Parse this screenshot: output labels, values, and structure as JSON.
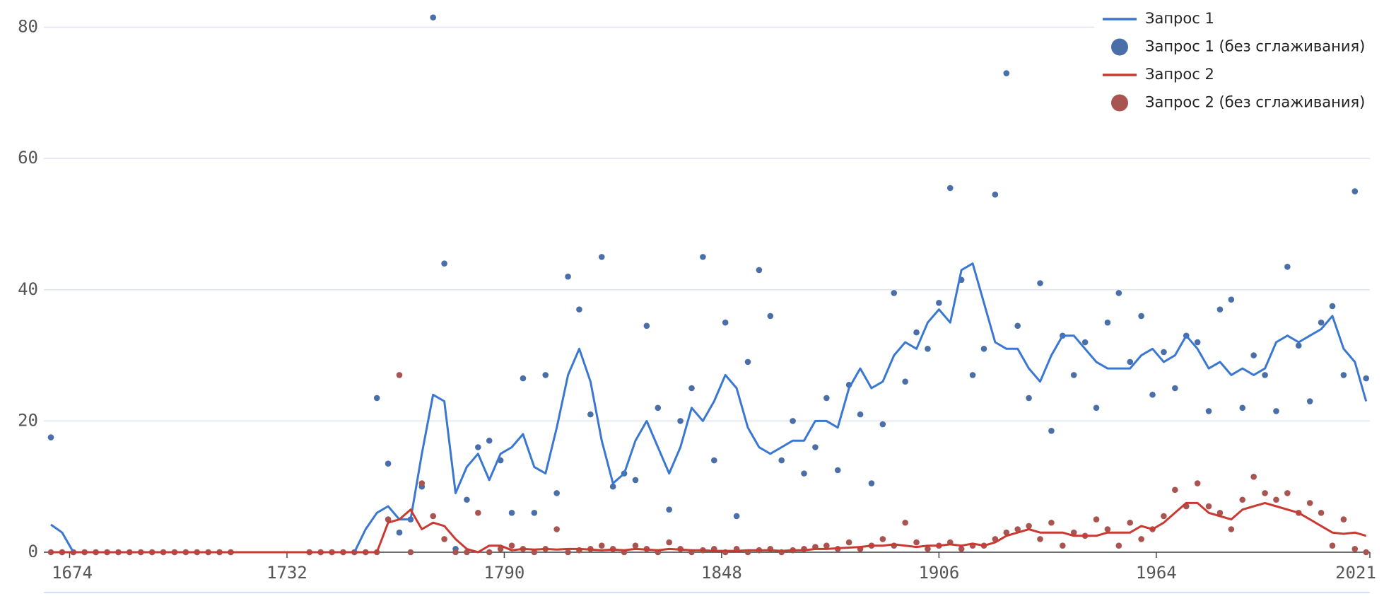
{
  "chart_data": {
    "type": "line",
    "x": [
      1669,
      1672,
      1675,
      1678,
      1681,
      1684,
      1687,
      1690,
      1693,
      1696,
      1699,
      1702,
      1705,
      1708,
      1711,
      1714,
      1717,
      1720,
      1723,
      1726,
      1729,
      1732,
      1735,
      1738,
      1741,
      1744,
      1747,
      1750,
      1753,
      1756,
      1759,
      1762,
      1765,
      1768,
      1771,
      1774,
      1777,
      1780,
      1783,
      1786,
      1789,
      1792,
      1795,
      1798,
      1801,
      1804,
      1807,
      1810,
      1813,
      1816,
      1819,
      1822,
      1825,
      1828,
      1831,
      1834,
      1837,
      1840,
      1843,
      1846,
      1849,
      1852,
      1855,
      1858,
      1861,
      1864,
      1867,
      1870,
      1873,
      1876,
      1879,
      1882,
      1885,
      1888,
      1891,
      1894,
      1897,
      1900,
      1903,
      1906,
      1909,
      1912,
      1915,
      1918,
      1921,
      1924,
      1927,
      1930,
      1933,
      1936,
      1939,
      1942,
      1945,
      1948,
      1951,
      1954,
      1957,
      1960,
      1963,
      1966,
      1969,
      1972,
      1975,
      1978,
      1981,
      1984,
      1987,
      1990,
      1993,
      1996,
      1999,
      2002,
      2005,
      2008,
      2011,
      2014,
      2017,
      2020
    ],
    "series": [
      {
        "name": "Запрос 1 (без сглаживания)",
        "mode": "markers",
        "color": "#4a6ea8",
        "values": [
          17.5,
          0,
          0,
          0,
          0,
          0,
          0,
          0,
          0,
          0,
          0,
          0,
          0,
          0,
          0,
          0,
          0,
          null,
          null,
          null,
          null,
          null,
          null,
          0,
          0,
          0,
          0,
          0,
          0,
          23.5,
          13.5,
          3,
          5,
          10,
          81.5,
          44,
          0.5,
          8,
          16,
          17,
          14,
          6,
          26.5,
          6,
          27,
          9,
          42,
          37,
          21,
          45,
          10,
          12,
          11,
          34.5,
          22,
          6.5,
          20,
          25,
          45,
          14,
          35,
          5.5,
          29,
          43,
          36,
          14,
          20,
          12,
          16,
          23.5,
          12.5,
          25.5,
          21,
          10.5,
          19.5,
          39.5,
          26,
          33.5,
          31,
          38,
          55.5,
          41.5,
          27,
          31,
          54.5,
          73,
          34.5,
          23.5,
          41,
          18.5,
          33,
          27,
          32,
          22,
          35,
          39.5,
          29,
          36,
          24,
          30.5,
          25,
          33,
          32,
          21.5,
          37,
          38.5,
          22,
          30,
          27,
          21.5,
          43.5,
          31.5,
          23,
          35,
          37.5,
          27,
          55,
          26.5
        ]
      },
      {
        "name": "Запрос 2 (без сглаживания)",
        "mode": "markers",
        "color": "#a85450",
        "values": [
          0,
          0,
          0,
          0,
          0,
          0,
          0,
          0,
          0,
          0,
          0,
          0,
          0,
          0,
          0,
          0,
          0,
          null,
          null,
          null,
          null,
          null,
          null,
          0,
          0,
          0,
          0,
          0,
          0,
          0,
          5,
          27,
          0,
          10.5,
          5.5,
          2,
          0,
          0,
          6,
          0,
          0.5,
          1,
          0.5,
          0,
          0.5,
          3.5,
          0,
          0.3,
          0.5,
          1,
          0.5,
          0,
          1,
          0.5,
          0,
          1.5,
          0.5,
          0,
          0.3,
          0.5,
          0,
          0.5,
          0,
          0.3,
          0.5,
          0,
          0.3,
          0.5,
          0.8,
          1,
          0.5,
          1.5,
          0.5,
          1,
          2,
          1,
          4.5,
          1.5,
          0.5,
          1,
          1.5,
          0.5,
          1,
          1,
          2,
          3,
          3.5,
          4,
          2,
          4.5,
          1,
          3,
          2.5,
          5,
          3.5,
          1,
          4.5,
          2,
          3.5,
          5.5,
          9.5,
          7,
          10.5,
          7,
          6,
          3.5,
          8,
          11.5,
          9,
          8,
          9,
          6,
          7.5,
          6,
          1,
          5,
          0.5,
          0
        ]
      },
      {
        "name": "Запрос 1",
        "mode": "line",
        "color": "#3a77d0",
        "values": [
          4.2,
          3,
          0,
          0,
          0,
          0,
          0,
          0,
          0,
          0,
          0,
          0,
          0,
          0,
          0,
          0,
          0,
          0,
          0,
          0,
          0,
          0,
          0,
          0,
          0,
          0,
          0,
          0,
          3.5,
          6,
          7,
          5,
          5,
          15,
          24,
          23,
          9,
          13,
          15,
          11,
          15,
          16,
          18,
          13,
          12,
          19,
          27,
          31,
          26,
          17,
          10.5,
          12,
          17,
          20,
          16,
          12,
          16,
          22,
          20,
          23,
          27,
          25,
          19,
          16,
          15,
          16,
          17,
          17,
          20,
          20,
          19,
          25,
          28,
          25,
          26,
          30,
          32,
          31,
          35,
          37,
          35,
          43,
          44,
          38,
          32,
          31,
          31,
          28,
          26,
          30,
          33,
          33,
          31,
          29,
          28,
          28,
          28,
          30,
          31,
          29,
          30,
          33,
          31,
          28,
          29,
          27,
          28,
          27,
          28,
          32,
          33,
          32,
          33,
          34,
          36,
          31,
          29,
          23
        ]
      },
      {
        "name": "Запрос 2",
        "mode": "line",
        "color": "#c83a32",
        "values": [
          0,
          0,
          0,
          0,
          0,
          0,
          0,
          0,
          0,
          0,
          0,
          0,
          0,
          0,
          0,
          0,
          0,
          0,
          0,
          0,
          0,
          0,
          0,
          0,
          0,
          0,
          0,
          0,
          0,
          0,
          4.5,
          5,
          6.5,
          3.5,
          4.5,
          4,
          2,
          0.5,
          0,
          1,
          1,
          0.3,
          0.5,
          0.4,
          0.5,
          0.4,
          0.5,
          0.5,
          0.4,
          0.3,
          0.4,
          0.3,
          0.5,
          0.4,
          0.3,
          0.5,
          0.4,
          0.3,
          0.3,
          0.2,
          0.2,
          0.2,
          0.3,
          0.3,
          0.3,
          0.2,
          0.3,
          0.3,
          0.5,
          0.5,
          0.6,
          0.7,
          0.8,
          1,
          1,
          1.2,
          1,
          0.8,
          1,
          1,
          1.2,
          1,
          1.3,
          1,
          1.5,
          2.5,
          3,
          3.5,
          3,
          3,
          3,
          2.5,
          2.5,
          2.5,
          3,
          3,
          3,
          4,
          3.5,
          4.5,
          6,
          7.5,
          7.5,
          6,
          5.5,
          5,
          6.5,
          7,
          7.5,
          7,
          6.5,
          6,
          5,
          4,
          3,
          2.8,
          3,
          2.5
        ]
      }
    ],
    "legend_order": [
      2,
      0,
      3,
      1
    ],
    "xlim": [
      1669,
      2021
    ],
    "xticks": [
      1674,
      1732,
      1790,
      1848,
      1906,
      1964,
      2021
    ],
    "ylim": [
      0,
      82
    ],
    "yticks": [
      0,
      20,
      40,
      60,
      80
    ],
    "grid": true,
    "legend": "upper right"
  }
}
